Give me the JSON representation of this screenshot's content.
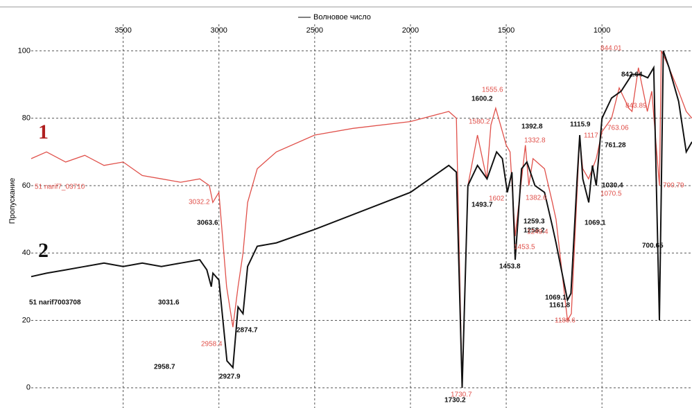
{
  "chart_data": {
    "type": "line",
    "x_label": "Волновое число",
    "y_label": "Пропускание",
    "xlim": [
      3980,
      530
    ],
    "ylim": [
      -6,
      112
    ],
    "xticks": [
      3500,
      3000,
      2500,
      2000,
      1500,
      1000
    ],
    "yticks": [
      0,
      20,
      40,
      60,
      80,
      100
    ],
    "grid": true,
    "series": [
      {
        "name": "1",
        "color": "#e0504a",
        "x": [
          3980,
          3900,
          3800,
          3700,
          3600,
          3500,
          3400,
          3300,
          3200,
          3100,
          3050,
          3032,
          3000,
          2960,
          2927,
          2900,
          2874,
          2850,
          2800,
          2700,
          2500,
          2300,
          2000,
          1800,
          1760,
          1730,
          1700,
          1650,
          1602,
          1580,
          1555,
          1500,
          1480,
          1453,
          1400,
          1382,
          1360,
          1300,
          1259,
          1240,
          1180,
          1160,
          1117,
          1100,
          1070,
          1030,
          1000,
          950,
          910,
          860,
          843,
          810,
          763,
          740,
          700,
          690,
          650,
          600,
          560,
          530
        ],
        "values": [
          68,
          70,
          67,
          69,
          66,
          67,
          63,
          62,
          61,
          62,
          60,
          55,
          58,
          30,
          18,
          30,
          40,
          55,
          65,
          70,
          75,
          77,
          79,
          82,
          80,
          0,
          60,
          75,
          62,
          78,
          83,
          72,
          70,
          45,
          72,
          60,
          68,
          65,
          55,
          50,
          20,
          22,
          74,
          65,
          62,
          68,
          76,
          80,
          89,
          83,
          82,
          95,
          82,
          88,
          60,
          100,
          95,
          88,
          82,
          80
        ]
      },
      {
        "name": "2",
        "color": "#111111",
        "x": [
          3980,
          3900,
          3800,
          3700,
          3600,
          3500,
          3400,
          3300,
          3200,
          3100,
          3063,
          3040,
          3031,
          3000,
          2958,
          2927,
          2900,
          2874,
          2850,
          2800,
          2700,
          2500,
          2000,
          1800,
          1760,
          1730,
          1700,
          1650,
          1600,
          1550,
          1520,
          1494,
          1470,
          1453,
          1420,
          1392,
          1350,
          1300,
          1259,
          1240,
          1180,
          1162,
          1130,
          1116,
          1100,
          1069,
          1050,
          1030,
          1000,
          950,
          900,
          843,
          800,
          761,
          730,
          700,
          680,
          650,
          600,
          560,
          530
        ],
        "values": [
          33,
          34,
          35,
          36,
          37,
          36,
          37,
          36,
          37,
          38,
          35,
          30,
          34,
          32,
          8,
          6,
          24,
          22,
          36,
          42,
          43,
          47,
          58,
          66,
          64,
          0,
          60,
          66,
          62,
          70,
          68,
          58,
          64,
          38,
          65,
          67,
          60,
          58,
          48,
          43,
          26,
          28,
          62,
          75,
          62,
          55,
          66,
          60,
          80,
          86,
          88,
          93,
          93,
          92,
          95,
          20,
          100,
          95,
          85,
          70,
          73
        ]
      }
    ],
    "annotations": [
      {
        "text": "3063.6",
        "color": "#111111"
      },
      {
        "text": "3031.6",
        "color": "#111111"
      },
      {
        "text": "2958.7",
        "color": "#111111"
      },
      {
        "text": "2927.9",
        "color": "#111111"
      },
      {
        "text": "2874.7",
        "color": "#111111"
      },
      {
        "text": "51 narif7003708",
        "color": "#111111"
      },
      {
        "text": "1730.2",
        "color": "#111111"
      },
      {
        "text": "1600.2",
        "color": "#111111"
      },
      {
        "text": "1493.7",
        "color": "#111111"
      },
      {
        "text": "1453.8",
        "color": "#111111"
      },
      {
        "text": "1259.3",
        "color": "#111111"
      },
      {
        "text": "1258.2",
        "color": "#111111"
      },
      {
        "text": "1069.1",
        "color": "#111111"
      },
      {
        "text": "1161.8",
        "color": "#111111"
      },
      {
        "text": "1115.9",
        "color": "#111111"
      },
      {
        "text": "1030.4",
        "color": "#111111"
      },
      {
        "text": "1069.1",
        "color": "#111111"
      },
      {
        "text": "1392.8",
        "color": "#111111"
      },
      {
        "text": "842.64",
        "color": "#111111"
      },
      {
        "text": "761.28",
        "color": "#111111"
      },
      {
        "text": "700.65",
        "color": "#111111"
      },
      {
        "text": "3032.2",
        "color": "#e0504a"
      },
      {
        "text": "2958.4",
        "color": "#e0504a"
      },
      {
        "text": "1555.6",
        "color": "#e0504a"
      },
      {
        "text": "1580.2",
        "color": "#e0504a"
      },
      {
        "text": "1602",
        "color": "#e0504a"
      },
      {
        "text": "1453.5",
        "color": "#e0504a"
      },
      {
        "text": "1382.6",
        "color": "#e0504a"
      },
      {
        "text": "1249.4",
        "color": "#e0504a"
      },
      {
        "text": "1180.6",
        "color": "#e0504a"
      },
      {
        "text": "1117",
        "color": "#e0504a"
      },
      {
        "text": "1070.5",
        "color": "#e0504a"
      },
      {
        "text": "844.01",
        "color": "#e0504a"
      },
      {
        "text": "843.89",
        "color": "#e0504a"
      },
      {
        "text": "763.06",
        "color": "#e0504a"
      },
      {
        "text": "700.79",
        "color": "#e0504a"
      },
      {
        "text": "1730.7",
        "color": "#e0504a"
      },
      {
        "text": "51 narif7_03710",
        "color": "#e0504a"
      },
      {
        "text": "1332.8",
        "color": "#e0504a"
      }
    ]
  }
}
